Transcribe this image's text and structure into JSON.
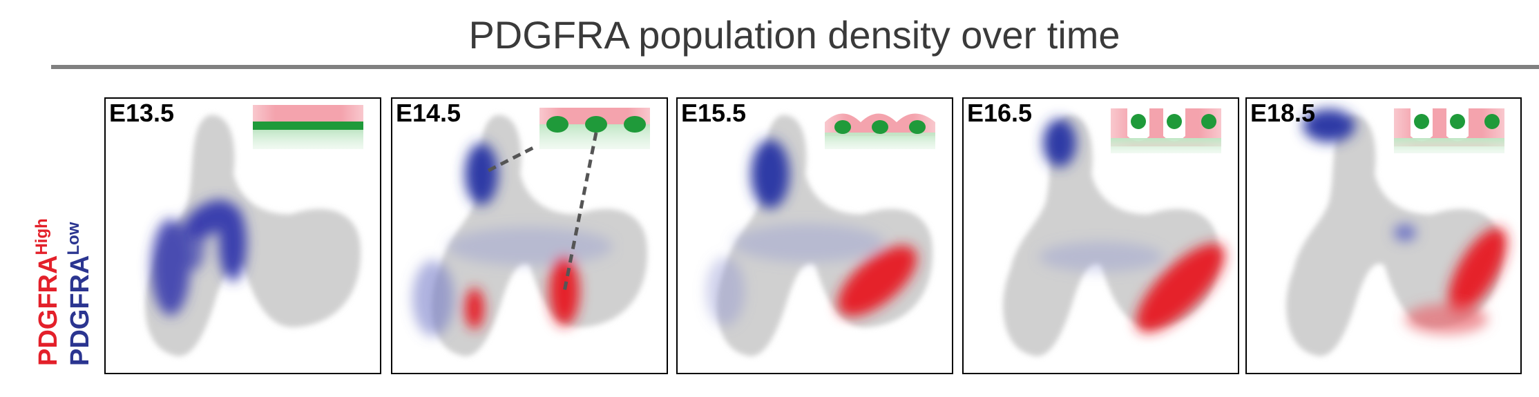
{
  "title": "PDGFRA population density over time",
  "y_label": {
    "high": {
      "text": "PDGFRA",
      "superscript": "High"
    },
    "low": {
      "text": "PDGFRA",
      "superscript": "Low"
    }
  },
  "panels": [
    {
      "label": "E13.5"
    },
    {
      "label": "E14.5"
    },
    {
      "label": "E15.5"
    },
    {
      "label": "E16.5"
    },
    {
      "label": "E18.5"
    }
  ]
}
